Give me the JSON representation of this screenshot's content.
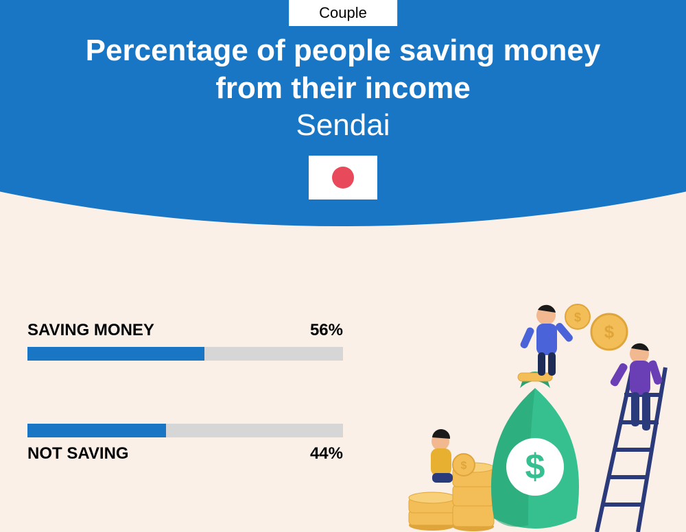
{
  "tag": "Couple",
  "title_line1": "Percentage of people saving money",
  "title_line2": "from their income",
  "city": "Sendai",
  "flag_dot_color": "#e94a5b",
  "hero_bg": "#1976c5",
  "page_bg": "#faf0e8",
  "bars": {
    "saving": {
      "label": "SAVING MONEY",
      "value_text": "56%",
      "value_pct": 56,
      "fill_color": "#1976c5",
      "track_color": "#d6d6d6"
    },
    "not_saving": {
      "label": "NOT SAVING",
      "value_text": "44%",
      "value_pct": 44,
      "fill_color": "#1976c5",
      "track_color": "#d6d6d6"
    }
  },
  "illustration": {
    "bag_color": "#36c08f",
    "bag_shadow": "#2aa374",
    "coin_color": "#f3bd57",
    "coin_edge": "#e0a53a",
    "ladder_color": "#2b3a7a",
    "person1": {
      "shirt": "#4a63d8",
      "pants": "#1d2b57",
      "skin": "#f2b890",
      "hair": "#1a1a1a"
    },
    "person2": {
      "shirt": "#6a3fb5",
      "pants": "#2b3a7a",
      "skin": "#f2b890",
      "hair": "#1a1a1a"
    },
    "person3": {
      "shirt": "#e8b030",
      "pants": "#2b3a7a",
      "skin": "#f2b890",
      "hair": "#1a1a1a"
    }
  }
}
